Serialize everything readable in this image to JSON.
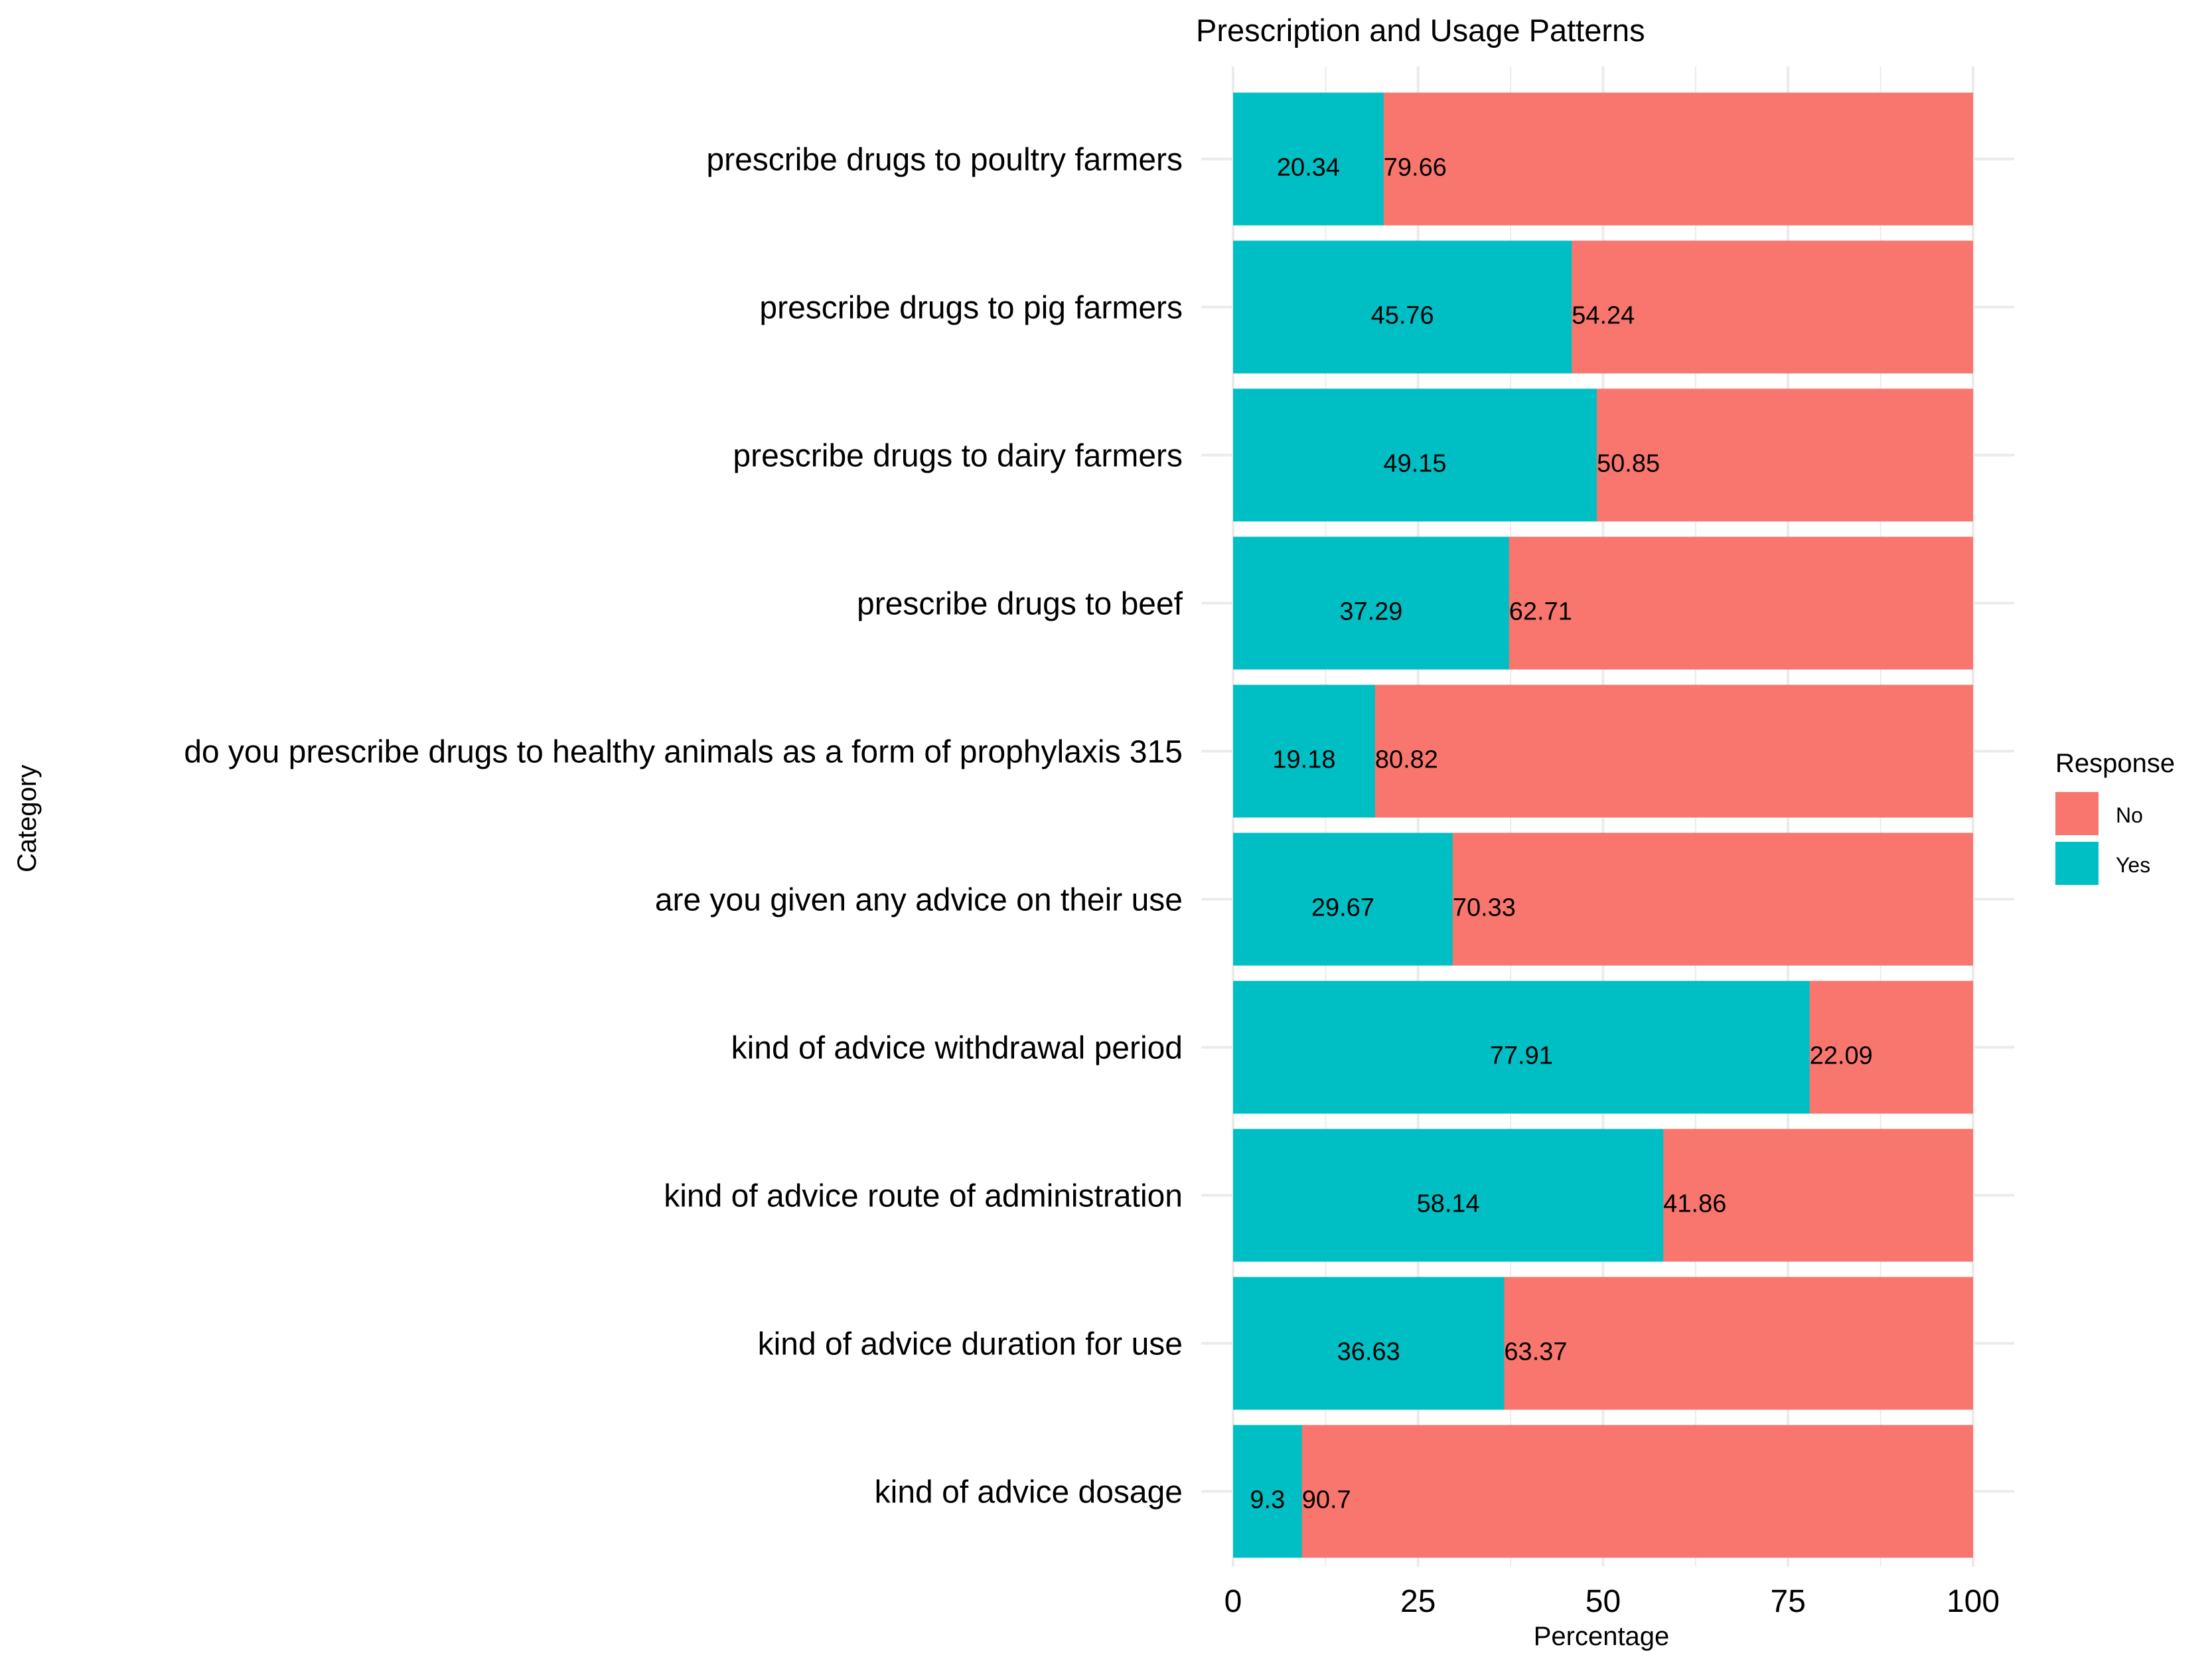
{
  "chart_data": {
    "type": "bar",
    "orientation": "horizontal",
    "stacked": true,
    "title": "Prescription and Usage Patterns",
    "xlabel": "Percentage",
    "ylabel": "Category",
    "xlim": [
      0,
      100
    ],
    "x_ticks": [
      "0",
      "25",
      "50",
      "75",
      "100"
    ],
    "grid": true,
    "legend": {
      "title": "Response",
      "position": "right",
      "entries": [
        {
          "label": "No",
          "color": "#F8766D"
        },
        {
          "label": "Yes",
          "color": "#00BFC4"
        }
      ]
    },
    "categories": [
      "prescribe drugs to poultry farmers",
      "prescribe drugs to pig farmers",
      "prescribe drugs to dairy farmers",
      "prescribe drugs to beef",
      "do you prescribe drugs to healthy animals as a form of prophylaxis 315",
      "are you given any advice on their use",
      "kind of advice withdrawal period",
      "kind of advice route of administration",
      "kind of advice duration for use",
      "kind of advice dosage"
    ],
    "series": [
      {
        "name": "Yes",
        "color": "#00BFC4",
        "values": [
          20.34,
          45.76,
          49.15,
          37.29,
          19.18,
          29.67,
          77.91,
          58.14,
          36.63,
          9.3
        ],
        "labels": [
          "20.34",
          "45.76",
          "49.15",
          "37.29",
          "19.18",
          "29.67",
          "77.91",
          "58.14",
          "36.63",
          "9.3"
        ]
      },
      {
        "name": "No",
        "color": "#F8766D",
        "values": [
          79.66,
          54.24,
          50.85,
          62.71,
          80.82,
          70.33,
          22.09,
          41.86,
          63.37,
          90.7
        ],
        "labels": [
          "79.66",
          "54.24",
          "50.85",
          "62.71",
          "80.82",
          "70.33",
          "22.09",
          "41.86",
          "63.37",
          "90.7"
        ]
      }
    ]
  }
}
